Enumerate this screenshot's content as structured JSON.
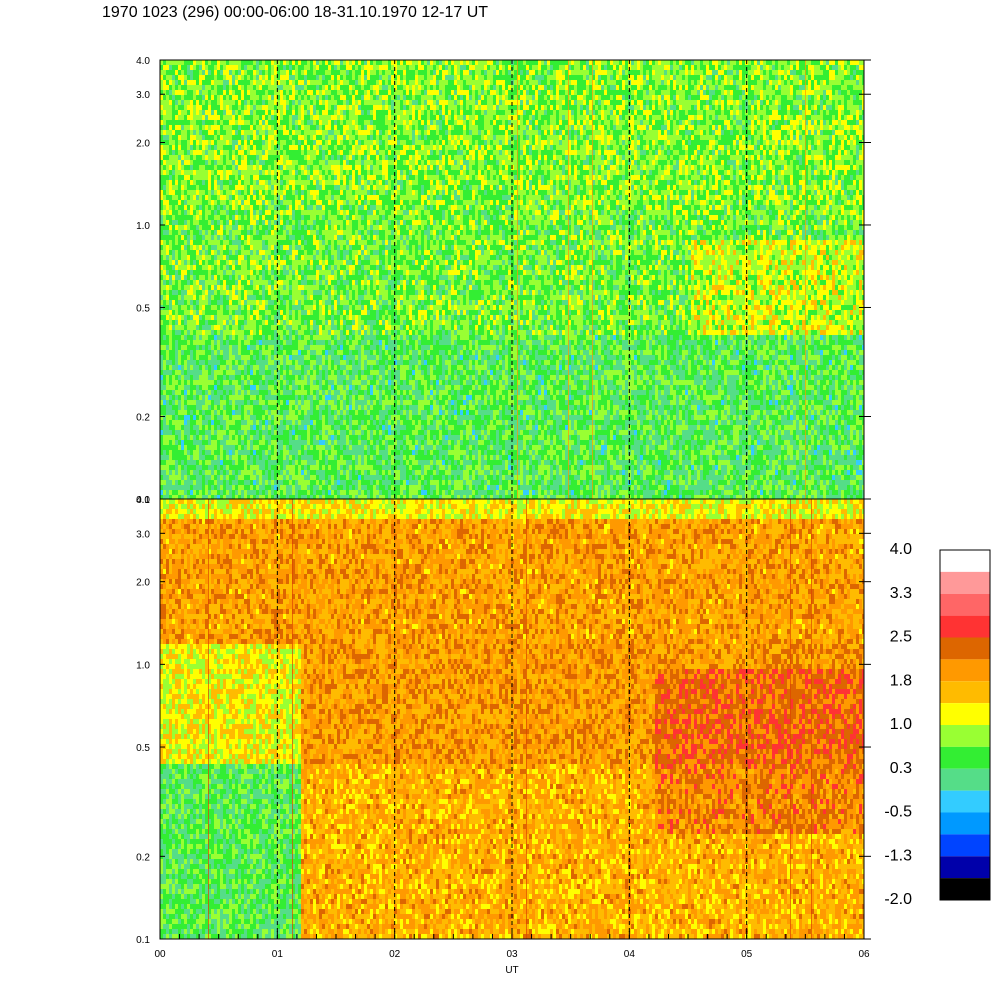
{
  "title": "1970 1023 (296) 00:00-06:00 18-31.10.1970  12-17 UT",
  "chart_data": {
    "type": "heatmap",
    "panels": [
      {
        "name": "",
        "y_scale": "log",
        "ylim": [
          0.1,
          4.0
        ],
        "ytick_labels": [
          "4.0",
          "3.0",
          "2.0",
          "1.0",
          "0.5",
          "0.2",
          "0.1"
        ],
        "ytick_values": [
          4.0,
          3.0,
          2.0,
          1.0,
          0.5,
          0.2,
          0.1
        ],
        "dominant_value_range": [
          0.3,
          1.0
        ]
      },
      {
        "name": "",
        "y_scale": "log",
        "ylim": [
          0.1,
          4.0
        ],
        "ytick_labels": [
          "4.0",
          "3.0",
          "2.0",
          "1.0",
          "0.5",
          "0.2",
          "0.1"
        ],
        "ytick_values": [
          4.0,
          3.0,
          2.0,
          1.0,
          0.5,
          0.2,
          0.1
        ],
        "dominant_value_range": [
          1.0,
          2.5
        ]
      }
    ],
    "x_tick_labels": [
      "00",
      "01",
      "02",
      "03",
      "04",
      "05",
      "06"
    ],
    "xlabel": "UT",
    "xlim": [
      0,
      6
    ],
    "dashed_hour_lines": [
      1,
      2,
      3,
      4,
      5
    ],
    "colorbar": {
      "labels": [
        "4.0",
        "3.3",
        "2.5",
        "1.8",
        "1.0",
        "0.3",
        "-0.5",
        "-1.3",
        "-2.0"
      ],
      "colors_top_to_bottom": [
        "#ffffff",
        "#ff9999",
        "#ff6666",
        "#ff3333",
        "#dd6600",
        "#ff9900",
        "#ffbb00",
        "#ffff00",
        "#99ff33",
        "#33ee33",
        "#55dd88",
        "#33ccff",
        "#0099ff",
        "#0044ff",
        "#0000aa",
        "#000000"
      ]
    }
  }
}
